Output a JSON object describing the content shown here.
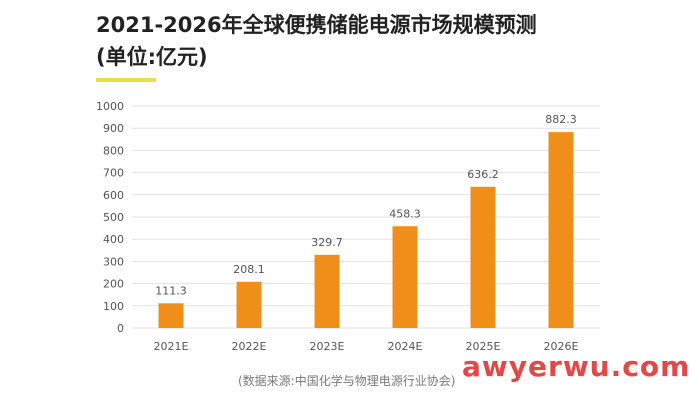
{
  "title": "2021-2026年全球便携储能电源市场规模预测",
  "subtitle": "(单位:亿元)",
  "source": "(数据来源:中国化学与物理电源行业协会)",
  "watermark": "awyerwu.com",
  "colors": {
    "bar": "#ef8f19",
    "accent": "#e5e04a",
    "watermark": "#e44747",
    "grid": "#e2e2e2",
    "text": "#555555"
  },
  "chart_data": {
    "type": "bar",
    "categories": [
      "2021E",
      "2022E",
      "2023E",
      "2024E",
      "2025E",
      "2026E"
    ],
    "values": [
      111.3,
      208.1,
      329.7,
      458.3,
      636.2,
      882.3
    ],
    "value_labels": [
      "111.3",
      "208.1",
      "329.7",
      "458.3",
      "636.2",
      "882.3"
    ],
    "title": "2021-2026年全球便携储能电源市场规模预测",
    "subtitle": "(单位:亿元)",
    "xlabel": "",
    "ylabel": "",
    "ylim": [
      0,
      1000
    ],
    "yticks": [
      0,
      100,
      200,
      300,
      400,
      500,
      600,
      700,
      800,
      900,
      1000
    ],
    "grid": true,
    "legend": "none"
  }
}
